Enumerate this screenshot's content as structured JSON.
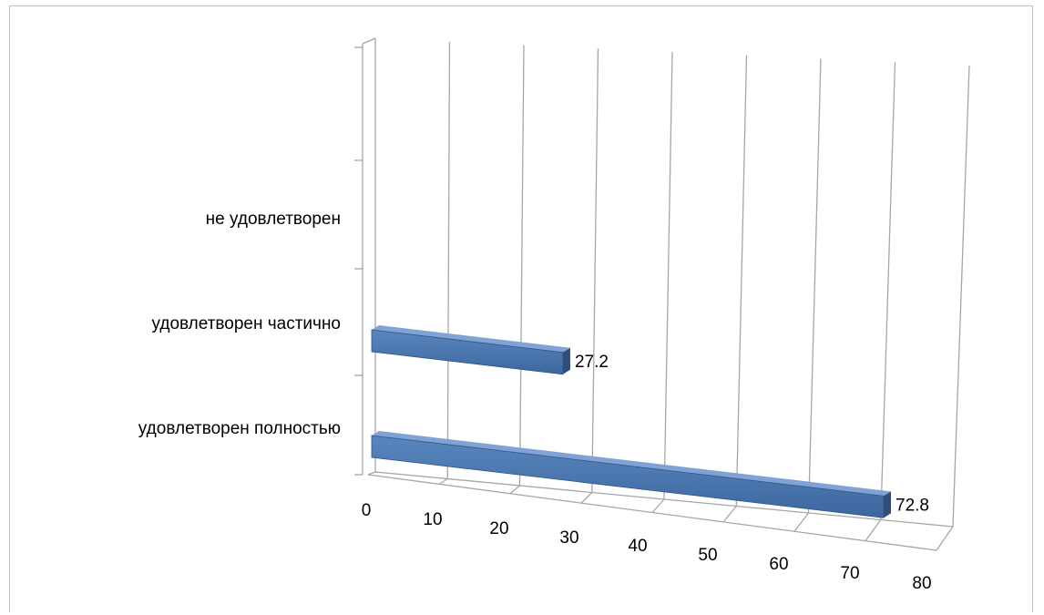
{
  "chart_data": {
    "type": "bar",
    "orientation": "horizontal",
    "style": "3d",
    "categories": [
      "удовлетворен полностью",
      "удовлетворен частично",
      "не удовлетворен"
    ],
    "values": [
      72.8,
      27.2,
      null
    ],
    "data_labels": [
      "72.8",
      "27.2",
      ""
    ],
    "x_ticks": [
      "0",
      "10",
      "20",
      "30",
      "40",
      "50",
      "60",
      "70",
      "80"
    ],
    "xlim": [
      0,
      80
    ],
    "grid": true,
    "legend": "none",
    "bar_color": "#4a74ab"
  }
}
